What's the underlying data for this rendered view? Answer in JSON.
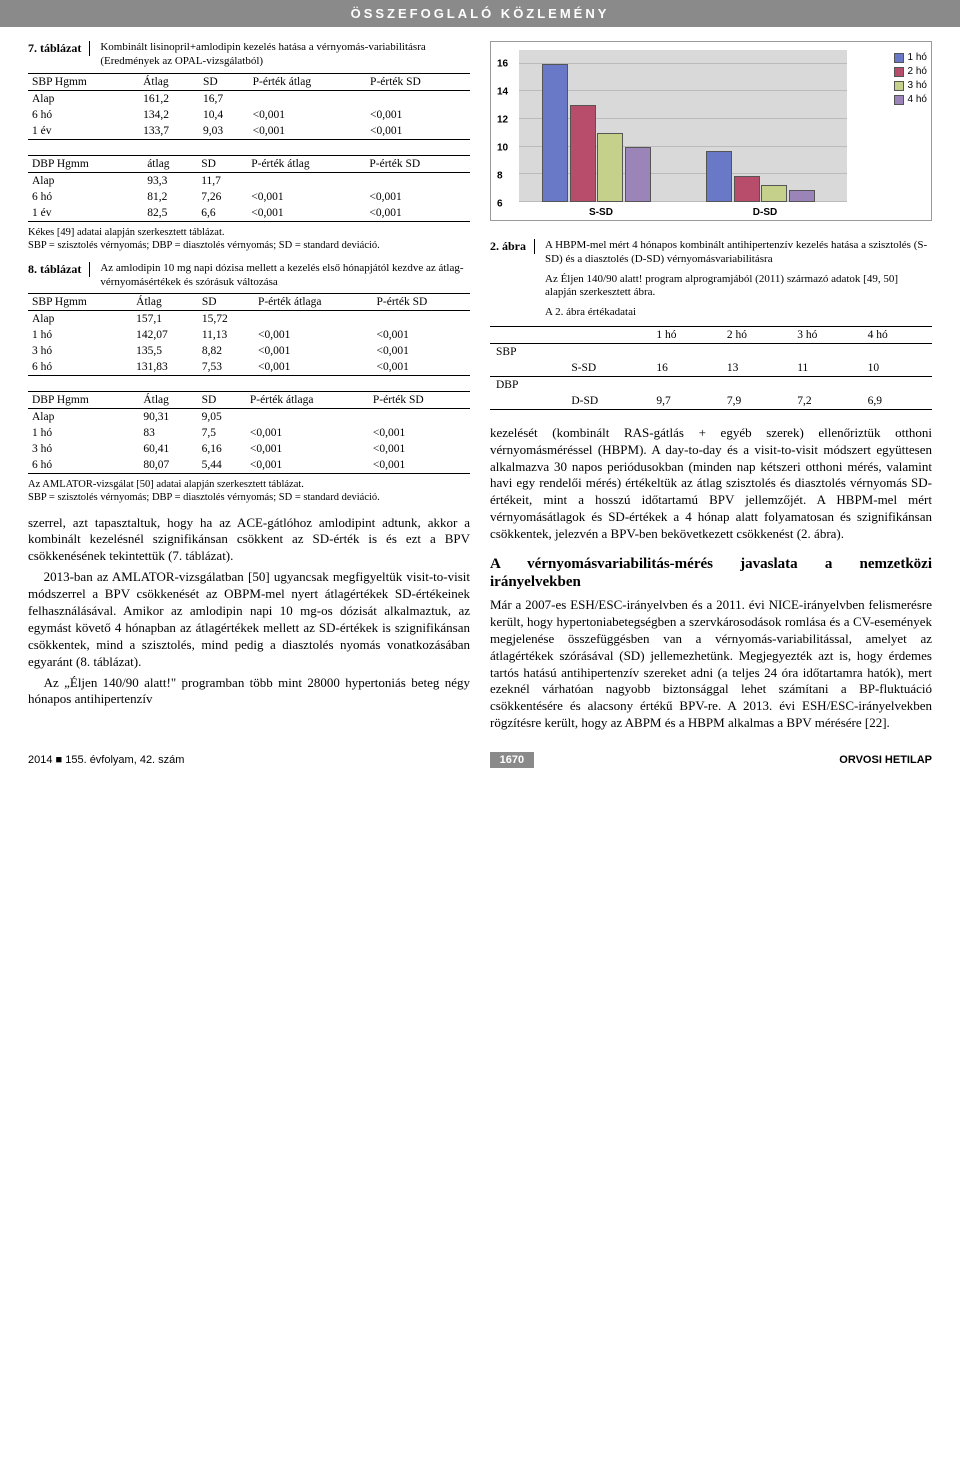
{
  "header": "ÖSSZEFOGLALÓ KÖZLEMÉNY",
  "table7": {
    "label": "7. táblázat",
    "caption": "Kombinált lisinopril+amlodipin kezelés hatása a vérnyomás-variabilitásra (Eredmények az OPAL-vizsgálatból)",
    "sbp": {
      "header": [
        "SBP Hgmm",
        "Átlag",
        "SD",
        "P-érték átlag",
        "P-érték SD"
      ],
      "rows": [
        [
          "Alap",
          "161,2",
          "16,7",
          "",
          ""
        ],
        [
          "6 hó",
          "134,2",
          "10,4",
          "<0,001",
          "<0,001"
        ],
        [
          "1 év",
          "133,7",
          "9,03",
          "<0,001",
          "<0,001"
        ]
      ]
    },
    "dbp": {
      "header": [
        "DBP Hgmm",
        "átlag",
        "SD",
        "P-érték átlag",
        "P-érték SD"
      ],
      "rows": [
        [
          "Alap",
          "93,3",
          "11,7",
          "",
          ""
        ],
        [
          "6 hó",
          "81,2",
          "7,26",
          "<0,001",
          "<0,001"
        ],
        [
          "1 év",
          "82,5",
          "6,6",
          "<0,001",
          "<0,001"
        ]
      ]
    },
    "note": "Kékes [49] adatai alapján szerkesztett táblázat.\nSBP = szisztolés vérnyomás; DBP = diasztolés vérnyomás; SD = standard deviáció."
  },
  "table8": {
    "label": "8. táblázat",
    "caption": "Az amlodipin 10 mg napi dózisa mellett a kezelés első hónapjától kezdve az átlag-vérnyomásértékek és szórásuk változása",
    "sbp": {
      "header": [
        "SBP Hgmm",
        "Átlag",
        "SD",
        "P-érték átlaga",
        "P-érték SD"
      ],
      "rows": [
        [
          "Alap",
          "157,1",
          "15,72",
          "",
          ""
        ],
        [
          "1 hó",
          "142,07",
          "11,13",
          "<0,001",
          "<0,001"
        ],
        [
          "3 hó",
          "135,5",
          "8,82",
          "<0,001",
          "<0,001"
        ],
        [
          "6 hó",
          "131,83",
          "7,53",
          "<0,001",
          "<0,001"
        ]
      ]
    },
    "dbp": {
      "header": [
        "DBP Hgmm",
        "Átlag",
        "SD",
        "P-érték átlaga",
        "P-érték SD"
      ],
      "rows": [
        [
          "Alap",
          "90,31",
          "9,05",
          "",
          ""
        ],
        [
          "1 hó",
          "83",
          "7,5",
          "<0,001",
          "<0,001"
        ],
        [
          "3 hó",
          "60,41",
          "6,16",
          "<0,001",
          "<0,001"
        ],
        [
          "6 hó",
          "80,07",
          "5,44",
          "<0,001",
          "<0,001"
        ]
      ]
    },
    "note": "Az AMLATOR-vizsgálat [50] adatai alapján szerkesztett táblázat.\nSBP = szisztolés vérnyomás; DBP = diasztolés vérnyomás; SD = standard deviáció."
  },
  "left_body": {
    "p1": "szerrel, azt tapasztaltuk, hogy ha az ACE-gátlóhoz amlodipint adtunk, akkor a kombinált kezelésnél szignifikánsan csökkent az SD-érték is és ezt a BPV csökkenésének tekintettük (7. táblázat).",
    "p2": "2013-ban az AMLATOR-vizsgálatban [50] ugyancsak megfigyeltük visit-to-visit módszerrel a BPV csökkenését az OBPM-mel nyert átlagértékek SD-értékeinek felhasználásával. Amikor az amlodipin napi 10 mg-os dózisát alkalmaztuk, az egymást követő 4 hónapban az átlagértékek mellett az SD-értékek is szignifikánsan csökkentek, mind a szisztolés, mind pedig a diasztolés nyomás vonatkozásában egyaránt (8. táblázat).",
    "p3": "Az „Éljen 140/90 alatt!\" programban több mint 28000 hypertoniás beteg négy hónapos antihipertenzív"
  },
  "fig2": {
    "label": "2. ábra",
    "caption": "A HBPM-mel mért 4 hónapos kombinált antihipertenzív kezelés hatása a szisztolés (S-SD) és a diasztolés (D-SD) vérnyomásvariabilitásra",
    "note1": "Az Éljen 140/90 alatt! program alprogramjából (2011) származó adatok [49, 50] alapján szerkesztett ábra.",
    "note2": "A 2. ábra értékadatai",
    "type": "bar",
    "background": "#d9d9d9",
    "grid_color": "#bbbbbb",
    "y_ticks": [
      6,
      8,
      10,
      12,
      14,
      16
    ],
    "ylim": [
      6,
      17
    ],
    "groups": [
      "S-SD",
      "D-SD"
    ],
    "series": [
      {
        "name": "1 hó",
        "color": "#6a78c8",
        "values": [
          16,
          9.7
        ]
      },
      {
        "name": "2 hó",
        "color": "#b74d6a",
        "values": [
          13,
          7.9
        ]
      },
      {
        "name": "3 hó",
        "color": "#c5d18a",
        "values": [
          11,
          7.2
        ]
      },
      {
        "name": "4 hó",
        "color": "#9a84b8",
        "values": [
          10,
          6.9
        ]
      }
    ],
    "legend_marker": "▢"
  },
  "fig2_table": {
    "months": [
      "1 hó",
      "2 hó",
      "3 hó",
      "4 hó"
    ],
    "sbp_label": "SBP",
    "sbp_row_label": "S-SD",
    "sbp_row": [
      "16",
      "13",
      "11",
      "10"
    ],
    "dbp_label": "DBP",
    "dbp_row_label": "D-SD",
    "dbp_row": [
      "9,7",
      "7,9",
      "7,2",
      "6,9"
    ]
  },
  "right_body": {
    "p1": "kezelését (kombinált RAS-gátlás + egyéb szerek) ellenőriztük otthoni vérnyomásméréssel (HBPM). A day-to-day és a visit-to-visit módszert együttesen alkalmazva 30 napos periódusokban (minden nap kétszeri otthoni mérés, valamint havi egy rendelői mérés) értékeltük az átlag szisztolés és diasztolés vérnyomás SD-értékeit, mint a hosszú időtartamú BPV jellemzőjét. A HBPM-mel mért vérnyomásátlagok és SD-értékek a 4 hónap alatt folyamatosan és szignifikánsan csökkentek, jelezvén a BPV-ben bekövetkezett csökkenést (2. ábra).",
    "section": "A vérnyomásvariabilitás-mérés javaslata a nemzetközi irányelvekben",
    "p2": "Már a 2007-es ESH/ESC-irányelvben és a 2011. évi NICE-irányelvben felismerésre került, hogy hypertoniabetegségben a szervkárosodások romlása és a CV-események megjelenése összefüggésben van a vérnyomás-variabilitással, amelyet az átlagértékek szórásával (SD) jellemezhetünk. Megjegyezték azt is, hogy érdemes tartós hatású antihipertenzív szereket adni (a teljes 24 óra időtartamra hatók), mert ezeknél várhatóan nagyobb biztonsággal lehet számítani a BP-fluktuáció csökkentésére és alacsony értékű BPV-re. A 2013. évi ESH/ESC-irányelvekben rögzítésre került, hogy az ABPM és a HBPM alkalmas a BPV mérésére [22]."
  },
  "footer": {
    "left": "2014 ■ 155. évfolyam, 42. szám",
    "page": "1670",
    "right": "ORVOSI HETILAP"
  }
}
